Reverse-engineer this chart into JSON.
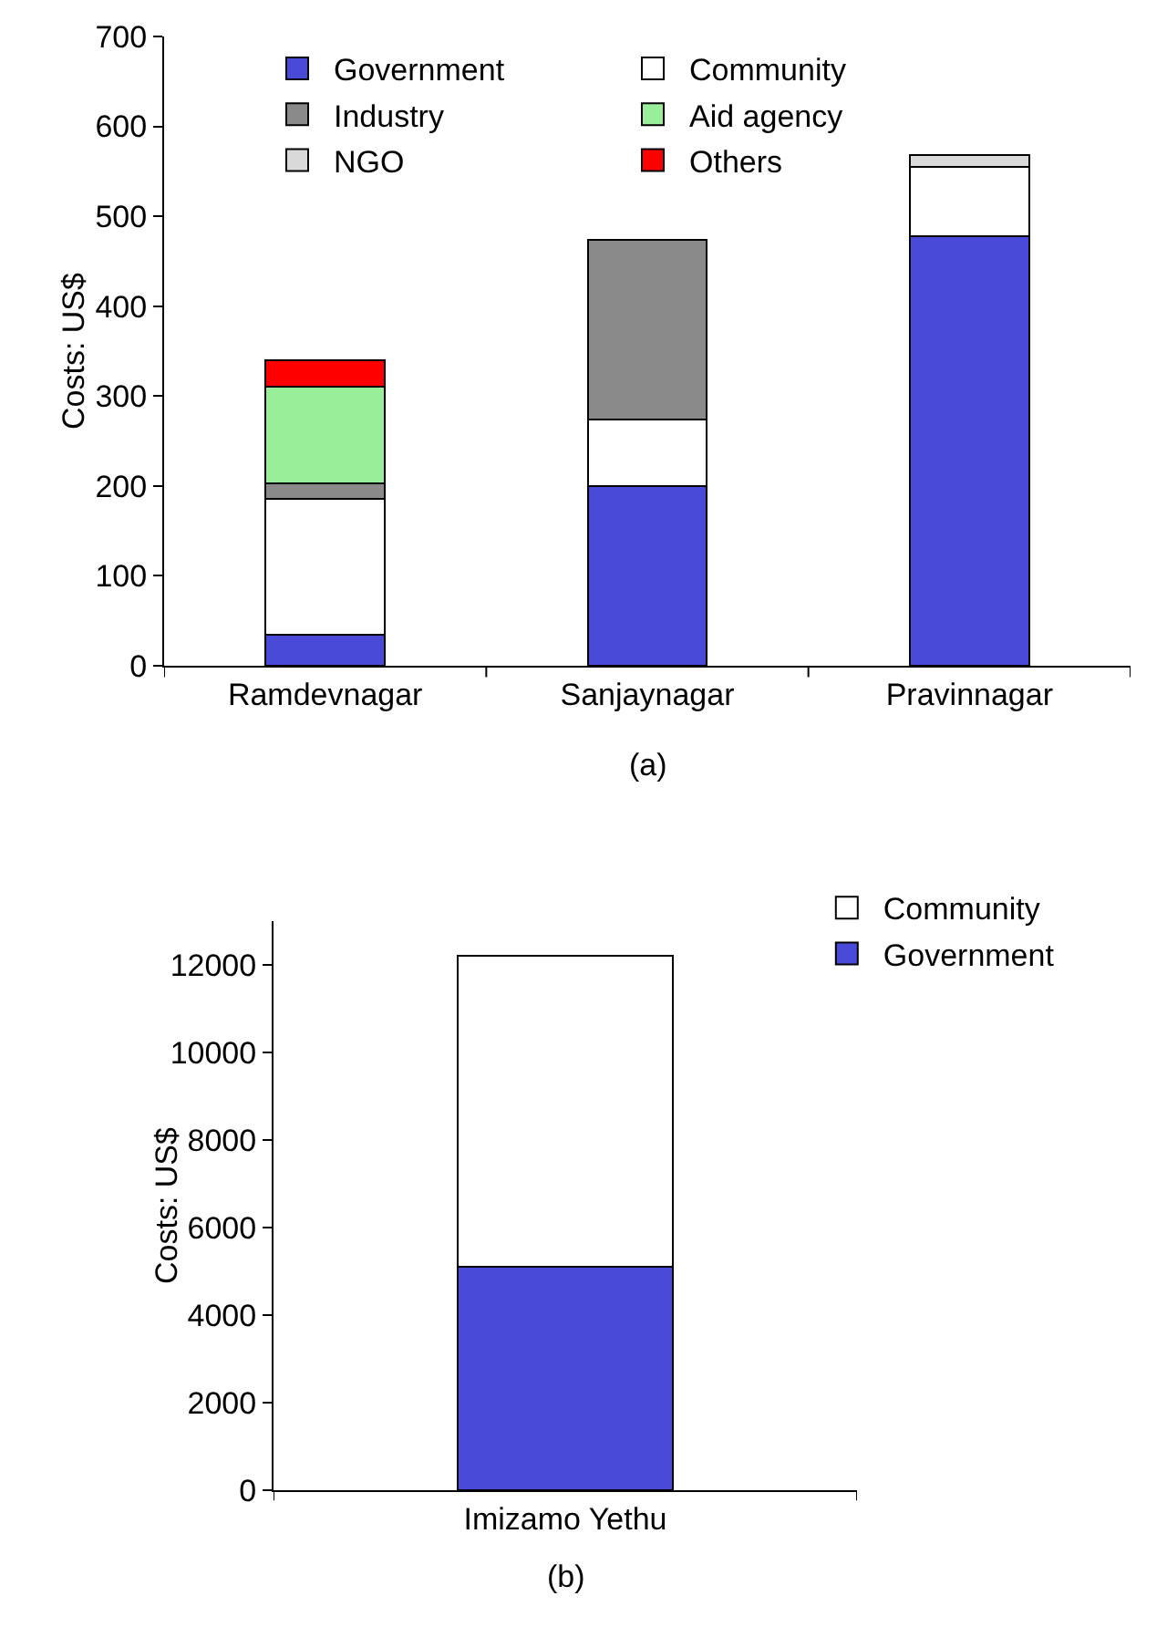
{
  "chart_data": [
    {
      "type": "bar",
      "stacked": true,
      "ylabel": "Costs: US$",
      "categories": [
        "Ramdevnagar",
        "Sanjaynagar",
        "Pravinnagar"
      ],
      "ylim": [
        0,
        700
      ],
      "yticks": [
        0,
        100,
        200,
        300,
        400,
        500,
        600,
        700
      ],
      "grid": false,
      "legend": "top left",
      "annotations": [
        "(a)"
      ],
      "series": [
        {
          "name": "Government",
          "color": "#4a4ad8",
          "values": [
            35,
            200,
            478
          ]
        },
        {
          "name": "Community",
          "color": "#ffffff",
          "values": [
            151,
            74,
            77
          ]
        },
        {
          "name": "Industry",
          "color": "#8a8a8a",
          "values": [
            17,
            200,
            null
          ]
        },
        {
          "name": "Aid agency",
          "color": "#99ee99",
          "values": [
            107,
            null,
            null
          ]
        },
        {
          "name": "NGO",
          "color": "#d9d9d9",
          "values": [
            null,
            null,
            13
          ]
        },
        {
          "name": "Others",
          "color": "#ff0000",
          "values": [
            30,
            null,
            null
          ]
        }
      ]
    },
    {
      "type": "bar",
      "stacked": true,
      "ylabel": "Costs: US$",
      "categories": [
        "Imizamo Yethu"
      ],
      "ylim": [
        0,
        13000
      ],
      "yticks": [
        0,
        2000,
        4000,
        6000,
        8000,
        10000,
        12000
      ],
      "grid": false,
      "legend": "top right",
      "annotations": [
        "(b)"
      ],
      "series": [
        {
          "name": "Government",
          "color": "#4a4ad8",
          "values": [
            5100
          ]
        },
        {
          "name": "Community",
          "color": "#ffffff",
          "values": [
            7100
          ]
        }
      ]
    }
  ]
}
